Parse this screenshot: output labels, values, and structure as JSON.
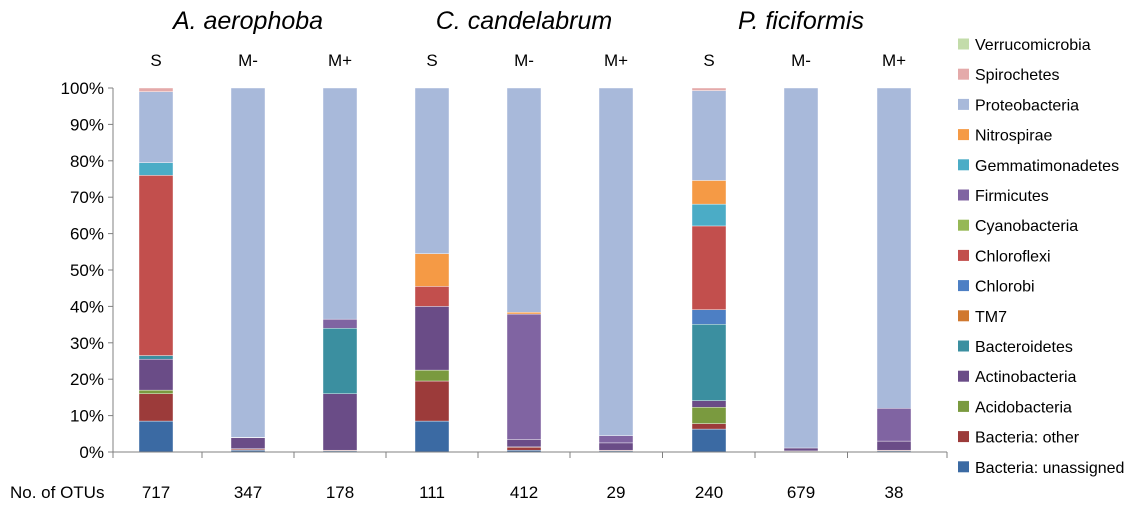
{
  "chart_data": {
    "type": "bar",
    "stacked": true,
    "percent": true,
    "groups": [
      "A. aerophoba",
      "C. candelabrum",
      "P. ficiformis"
    ],
    "sample_types": [
      "S",
      "M-",
      "M+"
    ],
    "categories": [
      "S",
      "M-",
      "M+",
      "S",
      "M-",
      "M+",
      "S",
      "M-",
      "M+"
    ],
    "otu_label": "No. of OTUs",
    "otus": [
      "717",
      "347",
      "178",
      "111",
      "412",
      "29",
      "240",
      "679",
      "38"
    ],
    "y_ticks": [
      "0%",
      "10%",
      "20%",
      "30%",
      "40%",
      "50%",
      "60%",
      "70%",
      "80%",
      "90%",
      "100%"
    ],
    "ylim": [
      0,
      100
    ],
    "legend_position": "right",
    "series": [
      {
        "name": "Bacteria: unassigned",
        "color": "#3b6aa3",
        "values": [
          8.5,
          0.5,
          0.3,
          8.5,
          0.5,
          0.3,
          6.3,
          0.2,
          0.3
        ]
      },
      {
        "name": "Bacteria: other",
        "color": "#9c3b3a",
        "values": [
          7.5,
          0.3,
          0.2,
          11.0,
          0.8,
          0.2,
          1.5,
          0.1,
          0.2
        ]
      },
      {
        "name": "Acidobacteria",
        "color": "#7a9a3f",
        "values": [
          1.0,
          0.1,
          0.0,
          3.0,
          0.1,
          0.0,
          4.5,
          0.0,
          0.0
        ]
      },
      {
        "name": "Actinobacteria",
        "color": "#6a4c87",
        "values": [
          8.5,
          3.0,
          15.5,
          17.5,
          2.0,
          2.0,
          1.8,
          0.8,
          2.5
        ]
      },
      {
        "name": "Bacteroidetes",
        "color": "#3b8fa0",
        "values": [
          1.0,
          0.1,
          18.0,
          0.0,
          0.0,
          0.0,
          21.0,
          0.0,
          0.0
        ]
      },
      {
        "name": "TM7",
        "color": "#d0782f",
        "values": [
          0.0,
          0.0,
          0.0,
          0.0,
          0.0,
          0.0,
          0.0,
          0.0,
          0.0
        ]
      },
      {
        "name": "Chlorobi",
        "color": "#4d7fc4",
        "values": [
          0.0,
          0.0,
          0.0,
          0.0,
          0.0,
          0.0,
          4.0,
          0.0,
          0.0
        ]
      },
      {
        "name": "Chloroflexi",
        "color": "#c24f4d",
        "values": [
          49.5,
          0.0,
          0.0,
          5.5,
          0.0,
          0.0,
          23.0,
          0.0,
          0.0
        ]
      },
      {
        "name": "Cyanobacteria",
        "color": "#96b856",
        "values": [
          0.0,
          0.0,
          0.0,
          0.0,
          0.0,
          0.0,
          0.0,
          0.0,
          0.0
        ]
      },
      {
        "name": "Firmicutes",
        "color": "#8064a2",
        "values": [
          0.0,
          0.0,
          2.5,
          0.0,
          34.5,
          2.0,
          0.0,
          0.0,
          9.0
        ]
      },
      {
        "name": "Gemmatimonadetes",
        "color": "#4bacc6",
        "values": [
          3.5,
          0.0,
          0.0,
          0.0,
          0.0,
          0.0,
          6.0,
          0.0,
          0.0
        ]
      },
      {
        "name": "Nitrospirae",
        "color": "#f59a45",
        "values": [
          0.0,
          0.0,
          0.0,
          9.0,
          0.5,
          0.0,
          6.5,
          0.0,
          0.0
        ]
      },
      {
        "name": "Proteobacteria",
        "color": "#a8b9da",
        "values": [
          19.5,
          96.0,
          63.5,
          45.5,
          61.6,
          95.5,
          24.7,
          98.9,
          88.0
        ]
      },
      {
        "name": "Spirochetes",
        "color": "#e4aaaa",
        "values": [
          1.0,
          0.0,
          0.0,
          0.0,
          0.0,
          0.0,
          0.7,
          0.0,
          0.0
        ]
      },
      {
        "name": "Verrucomicrobia",
        "color": "#c3dcaa",
        "values": [
          0.0,
          0.0,
          0.0,
          0.0,
          0.0,
          0.0,
          0.0,
          0.0,
          0.0
        ]
      }
    ]
  }
}
